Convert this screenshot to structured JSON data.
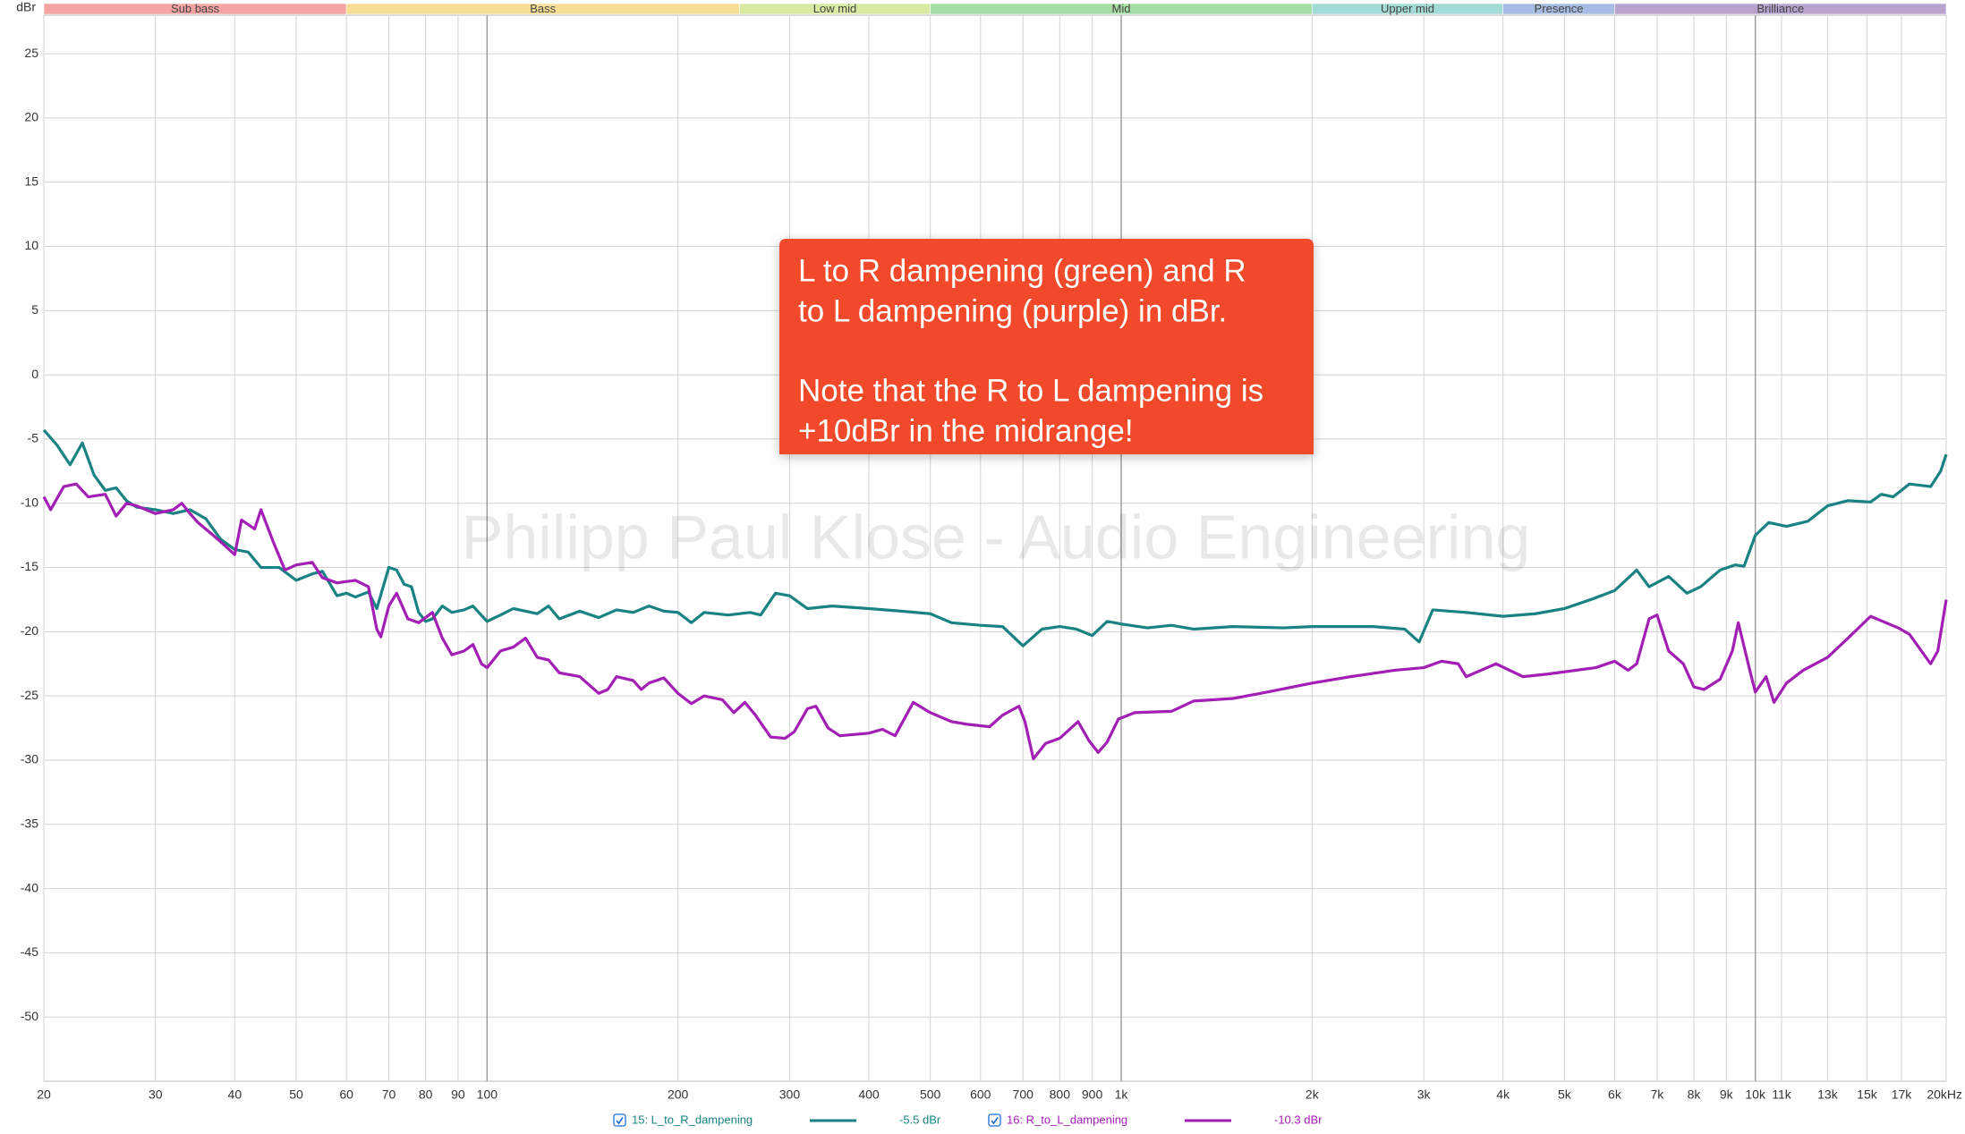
{
  "chart_data": {
    "type": "line",
    "ylabel": "dBr",
    "watermark": "Philipp Paul Klose - Audio Engineering",
    "annotation": [
      "L to R dampening (green) and R",
      "to L dampening (purple) in dBr.",
      "Note that the R to L dampening is",
      "+10dBr in the midrange!"
    ],
    "annotation_color": "#f24a2a",
    "xscale": "log",
    "xlim": [
      20,
      20000
    ],
    "ylim": [
      -55,
      28
    ],
    "grid": true,
    "xticks": [
      20,
      30,
      40,
      50,
      60,
      70,
      80,
      90,
      100,
      200,
      300,
      400,
      500,
      600,
      700,
      800,
      900,
      {
        "value": 1000,
        "label": "1k"
      },
      {
        "value": 2000,
        "label": "2k"
      },
      {
        "value": 3000,
        "label": "3k"
      },
      {
        "value": 4000,
        "label": "4k"
      },
      {
        "value": 5000,
        "label": "5k"
      },
      {
        "value": 6000,
        "label": "6k"
      },
      {
        "value": 7000,
        "label": "7k"
      },
      {
        "value": 8000,
        "label": "8k"
      },
      {
        "value": 9000,
        "label": "9k"
      },
      {
        "value": 10000,
        "label": "10k"
      },
      {
        "value": 11000,
        "label": "11k"
      },
      {
        "value": 13000,
        "label": "13k"
      },
      {
        "value": 15000,
        "label": "15k"
      },
      {
        "value": 17000,
        "label": "17k"
      },
      {
        "value": 20000,
        "label": "20kHz"
      }
    ],
    "yticks": [
      25,
      20,
      15,
      10,
      5,
      0,
      -5,
      -10,
      -15,
      -20,
      -25,
      -30,
      -35,
      -40,
      -45,
      -50
    ],
    "bands": [
      {
        "name": "Sub bass",
        "start": 20,
        "end": 60,
        "color": "#f5a3a3"
      },
      {
        "name": "Bass",
        "start": 60,
        "end": 250,
        "color": "#f7de94"
      },
      {
        "name": "Low mid",
        "start": 250,
        "end": 500,
        "color": "#d8eaa2"
      },
      {
        "name": "Mid",
        "start": 500,
        "end": 2000,
        "color": "#a6dea6"
      },
      {
        "name": "Upper mid",
        "start": 2000,
        "end": 4000,
        "color": "#a2dad6"
      },
      {
        "name": "Presence",
        "start": 4000,
        "end": 6000,
        "color": "#a6bce2"
      },
      {
        "name": "Brilliance",
        "start": 6000,
        "end": 20000,
        "color": "#b7a3ce"
      }
    ],
    "series": [
      {
        "name": "15: L_to_R_dampening",
        "legend_label": "-5.5 dBr",
        "color": "#1a8282",
        "x": [
          20,
          21,
          22,
          23,
          24,
          25,
          26,
          27,
          28,
          30,
          32,
          34,
          36,
          38,
          40,
          42,
          44,
          47,
          50,
          53,
          55,
          58,
          60,
          62,
          65,
          67,
          70,
          72,
          74,
          76,
          78,
          80,
          82,
          85,
          88,
          92,
          95,
          100,
          105,
          110,
          120,
          125,
          130,
          140,
          150,
          160,
          170,
          180,
          190,
          200,
          210,
          220,
          240,
          260,
          270,
          285,
          300,
          320,
          350,
          400,
          450,
          500,
          540,
          600,
          650,
          700,
          750,
          800,
          850,
          900,
          950,
          1000,
          1100,
          1200,
          1300,
          1500,
          1800,
          2000,
          2500,
          2800,
          2950,
          3100,
          3500,
          4000,
          4500,
          5000,
          5500,
          6000,
          6500,
          6800,
          7300,
          7800,
          8200,
          8800,
          9300,
          9600,
          10000,
          10500,
          11200,
          12100,
          13000,
          14000,
          15200,
          15800,
          16500,
          17500,
          18900,
          19600,
          20000
        ],
        "values": [
          -4.3,
          -5.5,
          -7,
          -5.3,
          -7.8,
          -9,
          -8.8,
          -9.8,
          -10.3,
          -10.5,
          -10.8,
          -10.5,
          -11.2,
          -12.8,
          -13.6,
          -13.8,
          -15,
          -15,
          -16,
          -15.5,
          -15.3,
          -17.2,
          -17,
          -17.3,
          -16.9,
          -18.2,
          -15,
          -15.2,
          -16.3,
          -16.5,
          -18.5,
          -19.2,
          -19,
          -18,
          -18.5,
          -18.3,
          -18,
          -19.2,
          -18.7,
          -18.2,
          -18.6,
          -18,
          -19,
          -18.4,
          -18.9,
          -18.3,
          -18.5,
          -18,
          -18.4,
          -18.5,
          -19.3,
          -18.5,
          -18.7,
          -18.5,
          -18.7,
          -17,
          -17.2,
          -18.2,
          -18,
          -18.2,
          -18.4,
          -18.6,
          -19.3,
          -19.5,
          -19.6,
          -21.1,
          -19.8,
          -19.6,
          -19.8,
          -20.3,
          -19.2,
          -19.4,
          -19.7,
          -19.5,
          -19.8,
          -19.6,
          -19.7,
          -19.6,
          -19.6,
          -19.8,
          -20.8,
          -18.3,
          -18.5,
          -18.8,
          -18.6,
          -18.2,
          -17.5,
          -16.8,
          -15.2,
          -16.5,
          -15.7,
          -17,
          -16.5,
          -15.2,
          -14.8,
          -14.9,
          -12.5,
          -11.5,
          -11.8,
          -11.4,
          -10.2,
          -9.8,
          -9.9,
          -9.3,
          -9.5,
          -8.5,
          -8.7,
          -7.5,
          -6.2
        ]
      },
      {
        "name": "16: R_to_L_dampening",
        "legend_label": "-10.3 dBr",
        "color": "#a21eb4",
        "x": [
          20,
          20.5,
          21.5,
          22.5,
          23.5,
          25,
          26,
          27,
          28,
          30,
          32,
          33,
          34,
          35,
          37,
          38,
          40,
          41,
          43,
          44,
          46,
          48,
          50,
          53,
          55,
          58,
          62,
          65,
          67,
          68,
          70,
          72,
          75,
          78,
          82,
          85,
          88,
          92,
          95,
          98,
          100,
          105,
          110,
          115,
          120,
          125,
          130,
          140,
          150,
          155,
          160,
          170,
          175,
          180,
          190,
          200,
          210,
          220,
          235,
          245,
          255,
          265,
          280,
          295,
          305,
          320,
          330,
          345,
          360,
          400,
          420,
          440,
          470,
          500,
          540,
          570,
          620,
          650,
          690,
          705,
          727,
          760,
          800,
          855,
          890,
          920,
          950,
          990,
          1050,
          1200,
          1300,
          1500,
          1700,
          2000,
          2300,
          2700,
          3000,
          3200,
          3400,
          3500,
          3900,
          4300,
          4700,
          5600,
          6000,
          6300,
          6500,
          6800,
          7000,
          7300,
          7700,
          8000,
          8300,
          8800,
          9200,
          9400,
          9800,
          10000,
          10400,
          10700,
          11200,
          11900,
          13000,
          14000,
          15200,
          16800,
          17500,
          18900,
          19400,
          20000
        ],
        "values": [
          -9.5,
          -10.5,
          -8.7,
          -8.5,
          -9.5,
          -9.3,
          -11,
          -10,
          -10.2,
          -10.8,
          -10.5,
          -10,
          -10.8,
          -11.5,
          -12.5,
          -13,
          -14,
          -11.3,
          -12,
          -10.5,
          -13,
          -15.2,
          -14.8,
          -14.6,
          -15.8,
          -16.2,
          -16,
          -16.5,
          -19.8,
          -20.4,
          -18,
          -17,
          -19,
          -19.3,
          -18.5,
          -20.5,
          -21.8,
          -21.5,
          -21,
          -22.5,
          -22.8,
          -21.5,
          -21.2,
          -20.5,
          -22,
          -22.2,
          -23.2,
          -23.5,
          -24.8,
          -24.5,
          -23.5,
          -23.8,
          -24.5,
          -24,
          -23.6,
          -24.8,
          -25.6,
          -25,
          -25.3,
          -26.3,
          -25.5,
          -26.5,
          -28.2,
          -28.3,
          -27.8,
          -26,
          -25.8,
          -27.5,
          -28.1,
          -27.9,
          -27.6,
          -28.1,
          -25.5,
          -26.3,
          -27,
          -27.2,
          -27.4,
          -26.5,
          -25.8,
          -27,
          -29.9,
          -28.7,
          -28.3,
          -27,
          -28.5,
          -29.4,
          -28.6,
          -26.8,
          -26.3,
          -26.2,
          -25.4,
          -25.2,
          -24.7,
          -24,
          -23.5,
          -23,
          -22.8,
          -22.3,
          -22.5,
          -23.5,
          -22.5,
          -23.5,
          -23.3,
          -22.8,
          -22.3,
          -23,
          -22.5,
          -19,
          -18.7,
          -21.5,
          -22.5,
          -24.3,
          -24.5,
          -23.7,
          -21.5,
          -19.3,
          -23,
          -24.7,
          -23.5,
          -25.5,
          -24,
          -23,
          -22,
          -20.5,
          -18.8,
          -19.7,
          -20.2,
          -22.5,
          -21.5,
          -17.5
        ]
      }
    ]
  }
}
